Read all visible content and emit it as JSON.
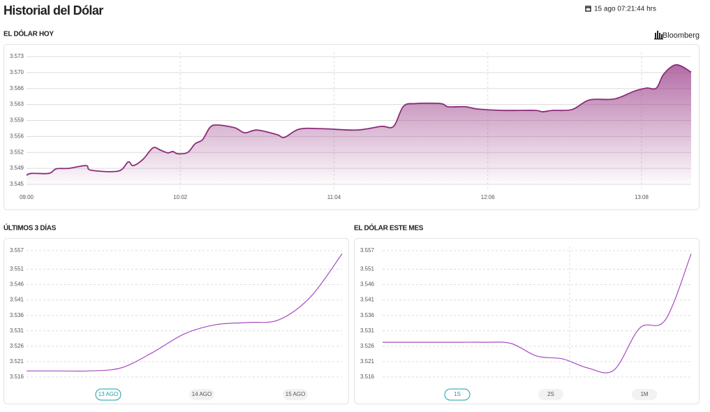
{
  "header": {
    "title": "Historial del Dólar",
    "timestamp": "15 ago 07:21:44 hrs"
  },
  "chart_data": [
    {
      "type": "area",
      "title": "EL DÓLAR HOY",
      "source": "Bloomberg",
      "color": "#8b2c7a",
      "x": [
        "09:00",
        "09:02",
        "09:09",
        "09:12",
        "09:17",
        "09:24",
        "09:26",
        "09:37",
        "09:41",
        "09:43",
        "09:47",
        "09:51",
        "09:54",
        "09:57",
        "09:59",
        "10:01",
        "10:05",
        "10:08",
        "10:11",
        "10:14",
        "10:17",
        "10:24",
        "10:28",
        "10:33",
        "10:41",
        "10:44",
        "10:50",
        "10:59",
        "11:13",
        "11:23",
        "11:28",
        "11:32",
        "11:37",
        "11:47",
        "11:50",
        "11:57",
        "12:02",
        "12:12",
        "12:25",
        "12:28",
        "12:32",
        "12:40",
        "12:47",
        "12:57",
        "13:05",
        "13:10",
        "13:14",
        "13:17",
        "13:22",
        "13:28"
      ],
      "values": [
        3.547,
        3.5474,
        3.5474,
        3.5484,
        3.5485,
        3.5491,
        3.5481,
        3.5479,
        3.5499,
        3.5491,
        3.5505,
        3.553,
        3.5525,
        3.5519,
        3.5522,
        3.5517,
        3.552,
        3.5539,
        3.5548,
        3.5575,
        3.558,
        3.5574,
        3.5563,
        3.5569,
        3.5559,
        3.5553,
        3.5571,
        3.5572,
        3.5569,
        3.5577,
        3.5577,
        3.5621,
        3.5627,
        3.5627,
        3.562,
        3.562,
        3.5615,
        3.5612,
        3.5612,
        3.5609,
        3.5612,
        3.5614,
        3.5635,
        3.5637,
        3.5654,
        3.5661,
        3.5661,
        3.5692,
        3.5712,
        3.5696
      ],
      "xlim": [
        "09:00",
        "13:28"
      ],
      "xticks": [
        "09:00",
        "10:02",
        "11:04",
        "12:06",
        "13:08"
      ],
      "ylim": [
        3.545,
        3.573
      ],
      "yticks": [
        3.545,
        {
          "value": 3.5485,
          "label": "3.549"
        },
        3.552,
        {
          "value": 3.5555,
          "label": "3.556"
        },
        3.559,
        {
          "value": 3.5625,
          "label": "3.563"
        },
        3.566,
        {
          "value": 3.5695,
          "label": "3.570"
        },
        3.573
      ],
      "grid": true
    },
    {
      "type": "line",
      "title": "ÚLTIMOS 3 DÍAS",
      "color": "#a64cc0",
      "values": [
        3.518,
        3.518,
        3.518,
        3.519,
        3.524,
        3.53,
        3.533,
        3.5337,
        3.5346,
        3.542,
        3.556
      ],
      "ylim": [
        3.516,
        3.557
      ],
      "yticks": [
        3.516,
        3.521,
        3.526,
        3.531,
        3.536,
        3.541,
        3.546,
        3.551,
        3.557
      ],
      "grid": true,
      "buttons": [
        "13 AGO",
        "14 AGO",
        "15 AGO"
      ],
      "selected": 0
    },
    {
      "type": "line",
      "title": "EL DÓLAR ESTE MES",
      "color": "#a64cc0",
      "values": [
        3.5273,
        3.5273,
        3.5273,
        3.5273,
        3.5273,
        3.5269,
        3.5228,
        3.5219,
        3.5189,
        3.5183,
        3.5319,
        3.5346,
        3.556
      ],
      "ylim": [
        3.516,
        3.557
      ],
      "yticks": [
        3.516,
        3.521,
        3.526,
        3.531,
        3.536,
        3.541,
        3.546,
        3.551,
        3.557
      ],
      "grid": true,
      "buttons": [
        "1S",
        "2S",
        "1M"
      ],
      "selected": 0
    }
  ]
}
